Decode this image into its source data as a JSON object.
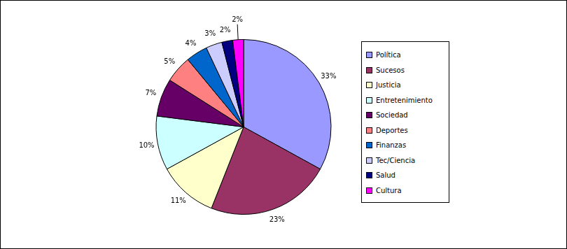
{
  "chart_data": {
    "type": "pie",
    "categories": [
      "Política",
      "Sucesos",
      "Justicia",
      "Entretenimiento",
      "Sociedad",
      "Deportes",
      "Finanzas",
      "Tec/Ciencia",
      "Salud",
      "Cultura"
    ],
    "values": [
      33,
      23,
      11,
      10,
      7,
      5,
      4,
      3,
      2,
      2
    ],
    "value_labels": [
      "33%",
      "23%",
      "11%",
      "10%",
      "7%",
      "5%",
      "4%",
      "3%",
      "2%",
      "2%"
    ],
    "colors": [
      "#9999ff",
      "#993366",
      "#ffffcc",
      "#ccffff",
      "#660066",
      "#ff8080",
      "#0066cc",
      "#ccccff",
      "#000080",
      "#ff00ff"
    ],
    "data_labels": true,
    "legend": "right"
  }
}
